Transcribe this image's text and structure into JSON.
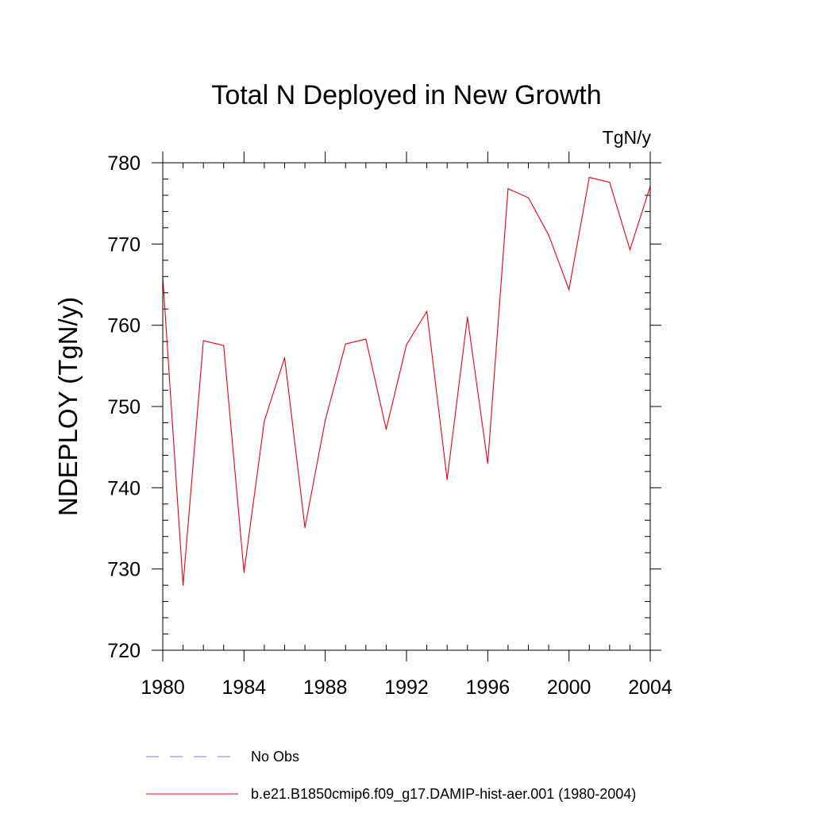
{
  "chart_data": {
    "type": "line",
    "title": "Total N Deployed in New Growth",
    "units": "TgN/y",
    "xlabel": "",
    "ylabel": "NDEPLOY  (TgN/y)",
    "xlim": [
      1980,
      2004
    ],
    "ylim": [
      720,
      780
    ],
    "x_ticks": [
      1980,
      1984,
      1988,
      1992,
      1996,
      2000,
      2004
    ],
    "y_ticks": [
      720,
      730,
      740,
      750,
      760,
      770,
      780
    ],
    "grid": false,
    "legend_position": "bottom",
    "series": [
      {
        "name": "b.e21.B1850cmip6.f09_g17.DAMIP-hist-aer.001 (1980-2004)",
        "color": "#e8000b",
        "line_style": "solid",
        "x": [
          1980,
          1981,
          1982,
          1983,
          1984,
          1985,
          1986,
          1987,
          1988,
          1989,
          1990,
          1991,
          1992,
          1993,
          1994,
          1995,
          1996,
          1997,
          1998,
          1999,
          2000,
          2001,
          2002,
          2003,
          2004
        ],
        "values": [
          766.0,
          728.0,
          758.1,
          757.5,
          729.6,
          748.2,
          756.0,
          735.1,
          748.3,
          757.7,
          758.3,
          747.2,
          757.6,
          761.7,
          741.0,
          761.0,
          743.0,
          776.8,
          775.7,
          771.1,
          764.4,
          778.2,
          777.6,
          769.3,
          777.1
        ]
      }
    ],
    "legend": [
      {
        "label": "No Obs",
        "color": "#7b7bd6",
        "line_style": "dashed"
      },
      {
        "label": "b.e21.B1850cmip6.f09_g17.DAMIP-hist-aer.001 (1980-2004)",
        "color": "#e8000b",
        "line_style": "solid"
      }
    ]
  }
}
